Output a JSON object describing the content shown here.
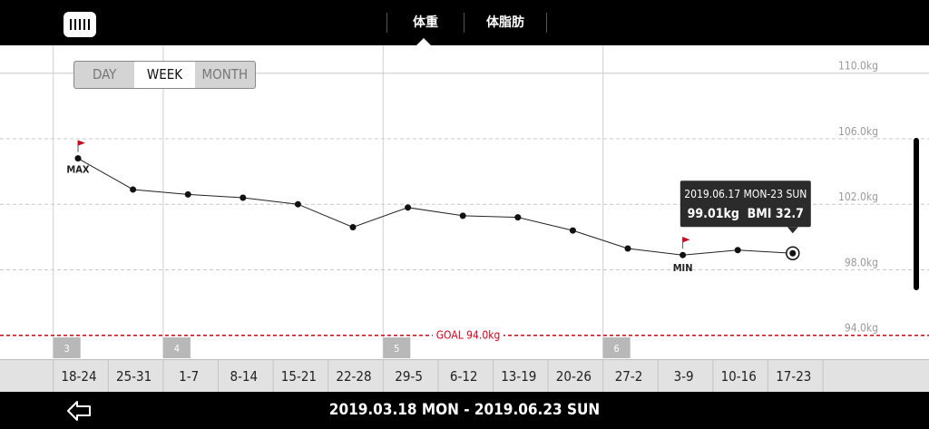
{
  "app": {
    "logo_icon": "ruler-icon",
    "tabs": [
      {
        "label": "体重",
        "active": true
      },
      {
        "label": "体脂肪",
        "active": false
      }
    ]
  },
  "period_selector": {
    "options": [
      "DAY",
      "WEEK",
      "MONTH"
    ],
    "selected": "WEEK"
  },
  "chart_data": {
    "type": "line",
    "unit": "kg",
    "y_tick_labels": [
      "110.0kg",
      "106.0kg",
      "102.0kg",
      "98.0kg",
      "94.0kg"
    ],
    "y_ticks": [
      110,
      106,
      102,
      98,
      94
    ],
    "ylim": [
      92.6,
      111.7
    ],
    "categories": [
      "18-24",
      "25-31",
      "1-7",
      "8-14",
      "15-21",
      "22-28",
      "29-5",
      "6-12",
      "13-19",
      "20-26",
      "27-2",
      "3-9",
      "10-16",
      "17-23"
    ],
    "values": [
      104.8,
      102.9,
      102.6,
      102.4,
      102.0,
      100.6,
      101.8,
      101.3,
      101.2,
      100.4,
      99.3,
      98.9,
      99.2,
      99.01
    ],
    "month_markers": [
      {
        "label": "3",
        "category_index": 0
      },
      {
        "label": "4",
        "category_index": 2
      },
      {
        "label": "5",
        "category_index": 6
      },
      {
        "label": "6",
        "category_index": 10
      }
    ],
    "max_label": "MAX",
    "max_index": 0,
    "min_label": "MIN",
    "min_index": 11,
    "goal": {
      "label": "GOAL 94.0kg",
      "value": 94.0,
      "color": "#d0021b"
    },
    "selected_index": 13,
    "tooltip": {
      "date_range": "2019.06.17 MON-23 SUN",
      "value_text": "99.01kg  BMI 32.7"
    },
    "grid": true
  },
  "footer": {
    "back_icon": "back-arrow-icon",
    "date_range": "2019.03.18 MON - 2019.06.23 SUN"
  }
}
